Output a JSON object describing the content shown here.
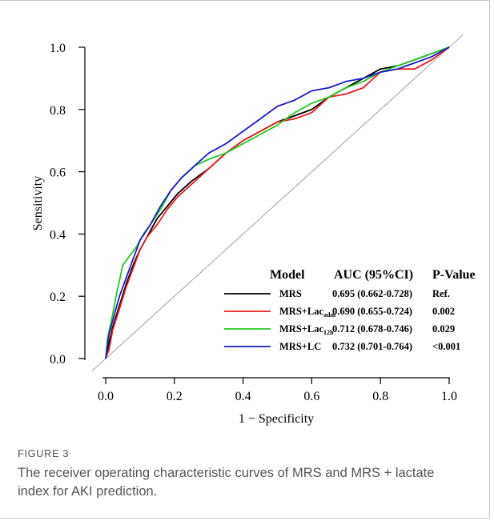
{
  "figure": {
    "label": "FIGURE 3",
    "caption": "The receiver operating characteristic curves of MRS and MRS + lactate index for AKI prediction."
  },
  "chart_data": {
    "type": "line",
    "title": "",
    "xlabel": "1 − Specificity",
    "ylabel": "Sensitivity",
    "xlim": [
      -0.05,
      1.05
    ],
    "ylim": [
      -0.05,
      1.05
    ],
    "x_ticks": [
      "0.0",
      "0.2",
      "0.4",
      "0.6",
      "0.8",
      "1.0"
    ],
    "y_ticks": [
      "0.0",
      "0.2",
      "0.4",
      "0.6",
      "0.8",
      "1.0"
    ],
    "grid": false,
    "reference_line": {
      "x": [
        0,
        1
      ],
      "y": [
        0,
        1
      ],
      "color": "#a0a0a0"
    },
    "legend": {
      "position": "bottom-right",
      "headers": {
        "model": "Model",
        "auc": "AUC (95%CI)",
        "p": "P-Value"
      },
      "entries": [
        {
          "name": "MRS",
          "sub": "",
          "auc": "0.695 (0.662-0.728)",
          "p": "Ref.",
          "color": "#000000"
        },
        {
          "name": "MRS+Lac",
          "sub": "adm",
          "auc": "0.690 (0.655-0.724)",
          "p": "0.002",
          "color": "#ee1c1c"
        },
        {
          "name": "MRS+Lac",
          "sub": "12h",
          "auc": "0.712 (0.678-0.746)",
          "p": "0.029",
          "color": "#22cc22"
        },
        {
          "name": "MRS+LC",
          "sub": "",
          "auc": "0.732 (0.701-0.764)",
          "p": "<0.001",
          "color": "#1a1acc"
        }
      ]
    },
    "series": [
      {
        "color": "#000000",
        "x": [
          0,
          0.01,
          0.02,
          0.04,
          0.06,
          0.08,
          0.1,
          0.12,
          0.15,
          0.18,
          0.21,
          0.25,
          0.3,
          0.35,
          0.4,
          0.45,
          0.5,
          0.55,
          0.6,
          0.65,
          0.7,
          0.75,
          0.8,
          0.85,
          0.9,
          0.95,
          1.0
        ],
        "y": [
          0,
          0.05,
          0.1,
          0.17,
          0.24,
          0.3,
          0.35,
          0.39,
          0.45,
          0.49,
          0.53,
          0.57,
          0.61,
          0.66,
          0.7,
          0.73,
          0.76,
          0.78,
          0.8,
          0.84,
          0.87,
          0.9,
          0.93,
          0.94,
          0.96,
          0.98,
          1.0
        ]
      },
      {
        "color": "#ee1c1c",
        "x": [
          0,
          0.01,
          0.02,
          0.04,
          0.06,
          0.08,
          0.1,
          0.12,
          0.15,
          0.18,
          0.21,
          0.25,
          0.3,
          0.35,
          0.4,
          0.45,
          0.5,
          0.55,
          0.6,
          0.65,
          0.7,
          0.75,
          0.8,
          0.85,
          0.9,
          0.95,
          1.0
        ],
        "y": [
          0,
          0.03,
          0.09,
          0.16,
          0.23,
          0.29,
          0.35,
          0.39,
          0.43,
          0.48,
          0.52,
          0.56,
          0.61,
          0.66,
          0.7,
          0.73,
          0.76,
          0.77,
          0.79,
          0.84,
          0.85,
          0.87,
          0.92,
          0.93,
          0.93,
          0.96,
          1.0
        ]
      },
      {
        "color": "#22cc22",
        "x": [
          0,
          0.005,
          0.01,
          0.02,
          0.03,
          0.05,
          0.07,
          0.09,
          0.11,
          0.13,
          0.16,
          0.19,
          0.22,
          0.26,
          0.3,
          0.35,
          0.4,
          0.45,
          0.5,
          0.55,
          0.6,
          0.65,
          0.7,
          0.75,
          0.8,
          0.85,
          0.9,
          0.95,
          1.0
        ],
        "y": [
          0,
          0.06,
          0.09,
          0.14,
          0.2,
          0.3,
          0.33,
          0.36,
          0.4,
          0.43,
          0.48,
          0.54,
          0.58,
          0.62,
          0.64,
          0.66,
          0.69,
          0.72,
          0.75,
          0.79,
          0.82,
          0.84,
          0.87,
          0.89,
          0.92,
          0.94,
          0.96,
          0.98,
          1.0
        ]
      },
      {
        "color": "#1a1acc",
        "x": [
          0,
          0.005,
          0.01,
          0.02,
          0.04,
          0.06,
          0.08,
          0.1,
          0.13,
          0.16,
          0.19,
          0.22,
          0.26,
          0.3,
          0.35,
          0.4,
          0.45,
          0.5,
          0.55,
          0.6,
          0.65,
          0.7,
          0.75,
          0.8,
          0.85,
          0.9,
          0.95,
          1.0
        ],
        "y": [
          0,
          0.04,
          0.08,
          0.12,
          0.2,
          0.26,
          0.32,
          0.38,
          0.43,
          0.49,
          0.54,
          0.58,
          0.62,
          0.66,
          0.69,
          0.73,
          0.77,
          0.81,
          0.83,
          0.86,
          0.87,
          0.89,
          0.9,
          0.92,
          0.93,
          0.95,
          0.97,
          1.0
        ]
      }
    ]
  }
}
